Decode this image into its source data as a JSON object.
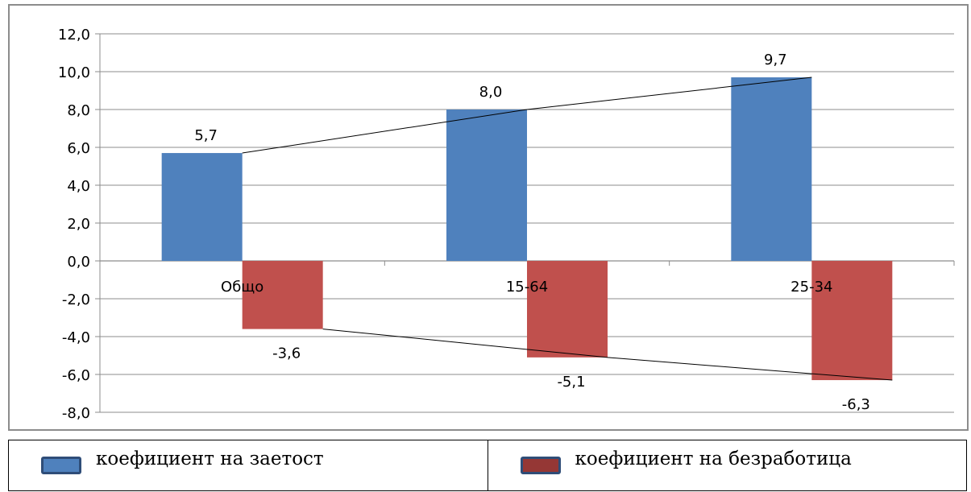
{
  "chart_data": {
    "type": "bar",
    "categories": [
      "Общо",
      "15-64",
      "25-34"
    ],
    "series": [
      {
        "name": "коефициент на заетост",
        "values": [
          5.7,
          8.0,
          9.7
        ],
        "labels": [
          "5,7",
          "8,0",
          "9,7"
        ],
        "color": "#4f81bd"
      },
      {
        "name": "коефициент на безработица",
        "values": [
          -3.6,
          -5.1,
          -6.3
        ],
        "labels": [
          "-3,6",
          "-5,1",
          "-6,3"
        ],
        "color": "#c0504d"
      }
    ],
    "ylim": [
      -8,
      12
    ],
    "yticks": [
      12,
      10,
      8,
      6,
      4,
      2,
      0,
      -2,
      -4,
      -6,
      -8
    ],
    "ytick_labels": [
      "12,0",
      "10,0",
      "8,0",
      "6,0",
      "4,0",
      "2,0",
      "0,0",
      "-2,0",
      "-4,0",
      "-6,0",
      "-8,0"
    ],
    "grid": true,
    "trendlines": true,
    "legend_position": "bottom",
    "title": "",
    "xlabel": "",
    "ylabel": ""
  },
  "legend": {
    "items": [
      {
        "label": "коефициент на заетост",
        "fill": "#4f81bd"
      },
      {
        "label": "коефициент на безработица",
        "fill": "#953735"
      }
    ]
  }
}
